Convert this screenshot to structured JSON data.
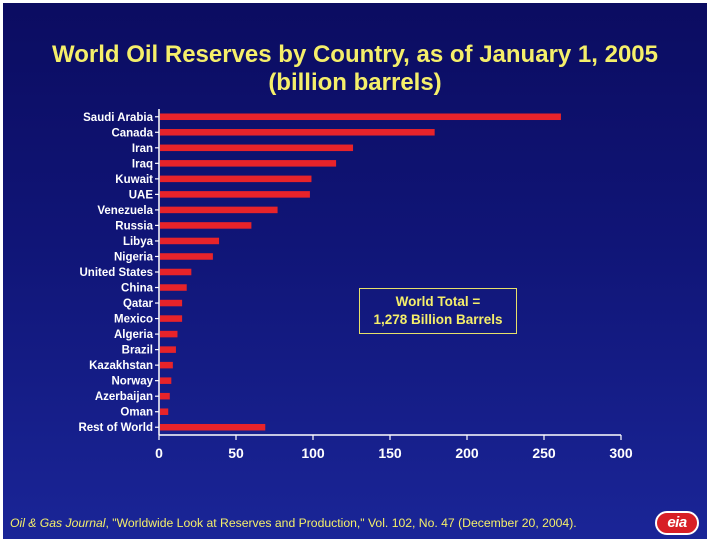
{
  "slide": {
    "title_line1": "World Oil Reserves by Country, as of January 1, 2005",
    "title_line2": "(billion barrels)",
    "total_line1": "World Total =",
    "total_line2": "1,278 Billion Barrels",
    "source_italic": "Oil & Gas Journal",
    "source_rest": ", \"Worldwide Look at Reserves and Production,\" Vol. 102, No. 47 (December 20, 2004).",
    "logo_text": "eia"
  },
  "colors": {
    "bar": "#e8232a",
    "title": "#f5ef6a",
    "axis": "#ffffff",
    "background_top": "#0b0c61",
    "background_bottom": "#1a2597"
  },
  "chart_data": {
    "type": "bar",
    "orientation": "horizontal",
    "categories": [
      "Saudi Arabia",
      "Canada",
      "Iran",
      "Iraq",
      "Kuwait",
      "UAE",
      "Venezuela",
      "Russia",
      "Libya",
      "Nigeria",
      "United States",
      "China",
      "Qatar",
      "Mexico",
      "Algeria",
      "Brazil",
      "Kazakhstan",
      "Norway",
      "Azerbaijan",
      "Oman",
      "Rest of World"
    ],
    "values": [
      261,
      179,
      126,
      115,
      99,
      98,
      77,
      60,
      39,
      35,
      21,
      18,
      15,
      15,
      12,
      11,
      9,
      8,
      7,
      6,
      69
    ],
    "xlim": [
      0,
      300
    ],
    "xticks": [
      0,
      50,
      100,
      150,
      200,
      250,
      300
    ],
    "grid": false,
    "legend": "none"
  }
}
